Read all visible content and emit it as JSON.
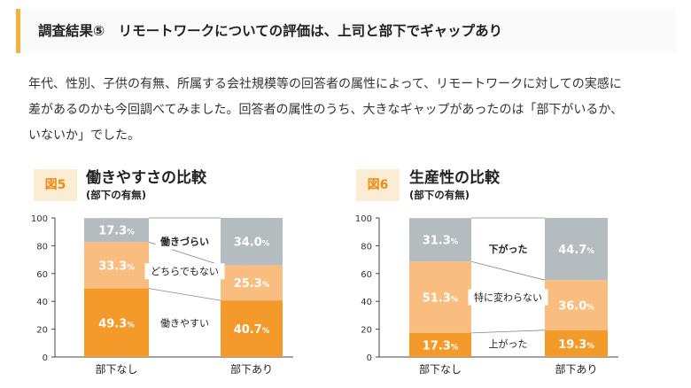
{
  "header": {
    "title": "調査結果⑤　リモートワークについての評価は、上司と部下でギャップあり"
  },
  "intro": {
    "lines": [
      "年代、性別、子供の有無、所属する会社規模等の回答者の属性によって、リモートワークに対しての実感に",
      "差があるのかも今回調べてみました。回答者の属性のうち、大きなギャップがあったのは「部下がいるか、",
      "いないか」でした。"
    ]
  },
  "colors": {
    "accent": "#f5b13d",
    "badge_bg": "#fdecd4",
    "badge_text": "#ec8a15",
    "gray": "#b4bcc0",
    "light_orange": "#f9bd80",
    "orange": "#f39a2a"
  },
  "chart_data": [
    {
      "type": "bar",
      "stacked": true,
      "badge": "図5",
      "title": "働きやすさの比較",
      "subtitle": "(部下の有無)",
      "categories": [
        "部下なし",
        "部下あり"
      ],
      "ylim": [
        0,
        100
      ],
      "yticks": [
        "0",
        "20",
        "40",
        "60",
        "80",
        "100"
      ],
      "series": [
        {
          "name": "働きやすい",
          "values": [
            49.3,
            40.7
          ],
          "labels": [
            "49.3",
            "40.7"
          ],
          "color": "#f39a2a"
        },
        {
          "name": "どちらでもない",
          "values": [
            33.3,
            25.3
          ],
          "labels": [
            "33.3",
            "25.3"
          ],
          "color": "#f9bd80"
        },
        {
          "name": "働きづらい",
          "values": [
            17.3,
            34.0
          ],
          "labels": [
            "17.3",
            "34.0"
          ],
          "color": "#b4bcc0"
        }
      ],
      "unit": "%",
      "grid": false
    },
    {
      "type": "bar",
      "stacked": true,
      "badge": "図6",
      "title": "生産性の比較",
      "subtitle": "(部下の有無)",
      "categories": [
        "部下なし",
        "部下あり"
      ],
      "ylim": [
        0,
        100
      ],
      "yticks": [
        "0",
        "20",
        "40",
        "60",
        "80",
        "100"
      ],
      "series": [
        {
          "name": "上がった",
          "values": [
            17.3,
            19.3
          ],
          "labels": [
            "17.3",
            "19.3"
          ],
          "color": "#f39a2a"
        },
        {
          "name": "特に変わらない",
          "values": [
            51.3,
            36.0
          ],
          "labels": [
            "51.3",
            "36.0"
          ],
          "color": "#f9bd80"
        },
        {
          "name": "下がった",
          "values": [
            31.3,
            44.7
          ],
          "labels": [
            "31.3",
            "44.7"
          ],
          "color": "#b4bcc0"
        }
      ],
      "unit": "%",
      "grid": false
    }
  ]
}
